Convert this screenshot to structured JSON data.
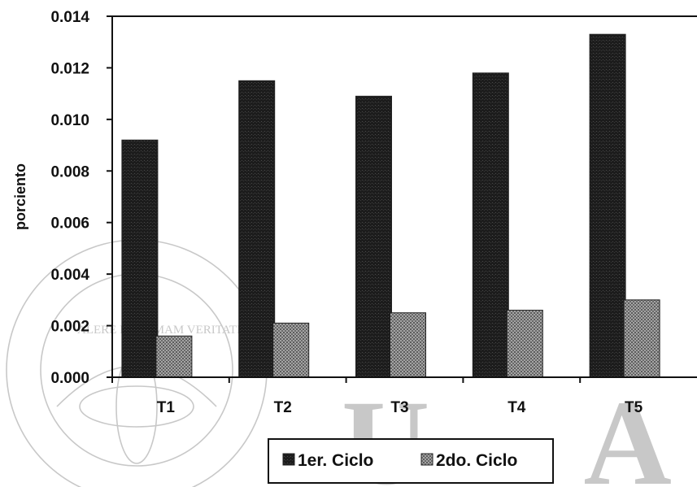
{
  "chart_data": {
    "type": "bar",
    "categories": [
      "T1",
      "T2",
      "T3",
      "T4",
      "T5"
    ],
    "series": [
      {
        "name": "1er. Ciclo",
        "values": [
          0.0092,
          0.0115,
          0.0109,
          0.0118,
          0.0133
        ],
        "color": "#1c1c1c"
      },
      {
        "name": "2do. Ciclo",
        "values": [
          0.0016,
          0.0021,
          0.0025,
          0.0026,
          0.003
        ],
        "color": "#9a9a9a"
      }
    ],
    "ylabel": "porciento",
    "ylim": [
      0,
      0.014
    ],
    "yticks": [
      "0.000",
      "0.002",
      "0.004",
      "0.006",
      "0.008",
      "0.010",
      "0.012",
      "0.014"
    ],
    "grid": false,
    "legend_position": "bottom-right"
  },
  "watermark": {
    "seal_text": "ALERE FLAMMAM VERITATIS",
    "letters": "U A N"
  }
}
